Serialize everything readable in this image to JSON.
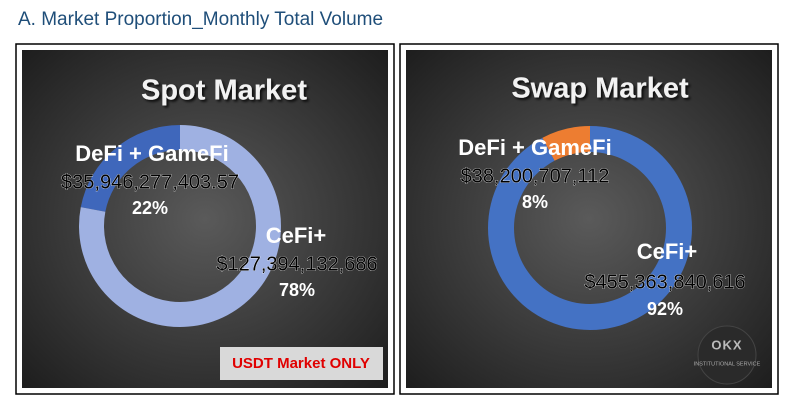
{
  "title": "A. Market Proportion_Monthly Total Volume",
  "chart_data": [
    {
      "type": "pie",
      "title": "Spot Market",
      "categories": [
        "DeFi + GameFi",
        "CeFi+"
      ],
      "values": [
        35946277403.57,
        127394132686
      ],
      "value_labels": [
        "$35,946,277,403.57",
        "$127,394,132,686"
      ],
      "percents": [
        22,
        78
      ],
      "percent_labels": [
        "22%",
        "78%"
      ],
      "colors": [
        "#3f67bb",
        "#9fb1e2"
      ]
    },
    {
      "type": "pie",
      "title": "Swap Market",
      "categories": [
        "DeFi + GameFi",
        "CeFi+"
      ],
      "values": [
        38200707112,
        455363840616
      ],
      "value_labels": [
        "$38,200,707,112",
        "$455,363,840,616"
      ],
      "percents": [
        8,
        92
      ],
      "percent_labels": [
        "8%",
        "92%"
      ],
      "colors": [
        "#ed7d31",
        "#4472c4"
      ]
    }
  ],
  "note": "USDT Market ONLY",
  "logo": {
    "mark": "OKX",
    "text": "INSTITUTIONAL SERVICE"
  }
}
